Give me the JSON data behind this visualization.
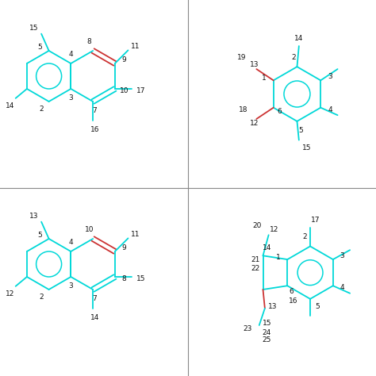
{
  "bg_color": "#ffffff",
  "bond_color": "#00d8d8",
  "red_bond_color": "#cc3333",
  "label_color": "#111111",
  "lw": 1.3,
  "fs": 6.5
}
